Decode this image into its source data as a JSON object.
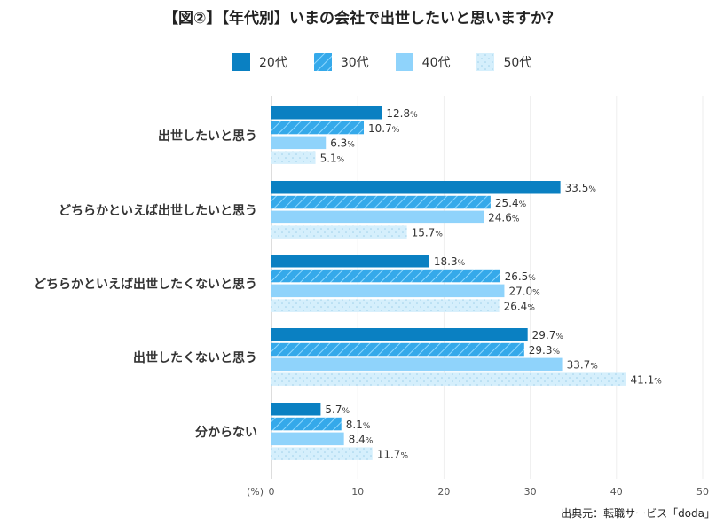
{
  "chart_data": {
    "type": "bar",
    "orientation": "horizontal",
    "title": "【図②】【年代別】いまの会社で出世したいと思いますか？",
    "categories": [
      "出世したいと思う",
      "どちらかといえば出世したいと思う",
      "どちらかといえば出世したくないと思う",
      "出世したくないと思う",
      "分からない"
    ],
    "series": [
      {
        "name": "20代",
        "values": [
          12.8,
          33.5,
          18.3,
          29.7,
          5.7
        ],
        "color": "#0a80c2",
        "pattern": "solid"
      },
      {
        "name": "30代",
        "values": [
          10.7,
          25.4,
          26.5,
          29.3,
          8.1
        ],
        "color": "#35a9ea",
        "pattern": "hatch"
      },
      {
        "name": "40代",
        "values": [
          6.3,
          24.6,
          27.0,
          33.7,
          8.4
        ],
        "color": "#8fd3fb",
        "pattern": "solid"
      },
      {
        "name": "50代",
        "values": [
          5.1,
          15.7,
          26.4,
          41.1,
          11.7
        ],
        "color": "#d5effc",
        "pattern": "dots"
      }
    ],
    "xlabel": "(%)",
    "xlim": [
      0,
      50
    ],
    "xticks": [
      0,
      10,
      20,
      30,
      40,
      50
    ],
    "value_suffix": "%",
    "grid": true,
    "legend_placement": "top"
  },
  "source": "出典元：転職サービス「doda」"
}
